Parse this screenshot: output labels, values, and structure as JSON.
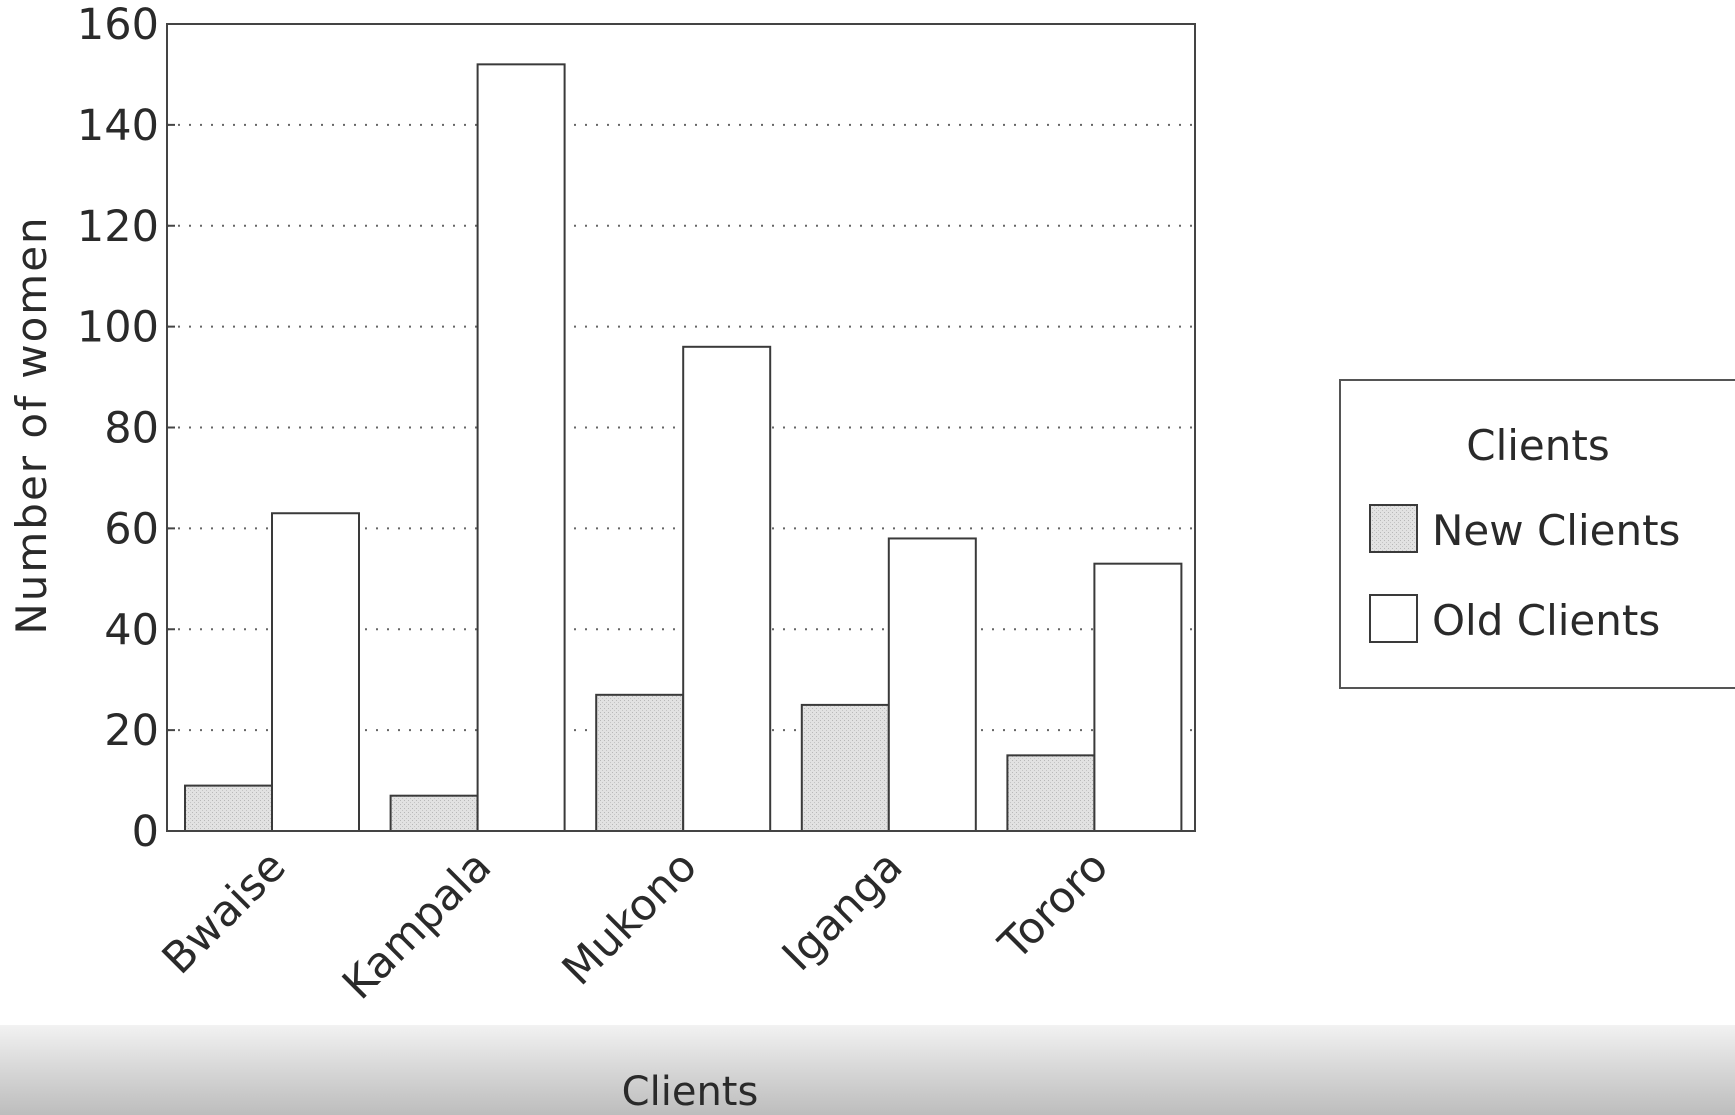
{
  "chart_data": {
    "type": "bar",
    "title": "",
    "xlabel": "Clients",
    "ylabel": "Number of women",
    "categories": [
      "Bwaise",
      "Kampala",
      "Mukono",
      "Iganga",
      "Tororo"
    ],
    "series": [
      {
        "name": "New Clients",
        "values": [
          9,
          7,
          27,
          25,
          15
        ],
        "color": "#dcdcdc"
      },
      {
        "name": "Old Clients",
        "values": [
          63,
          152,
          96,
          58,
          53
        ],
        "color": "#ffffff"
      }
    ],
    "ylim": [
      0,
      160
    ],
    "yticks": [
      "0",
      "20",
      "40",
      "60",
      "80",
      "100",
      "120",
      "140",
      "160"
    ],
    "grid": "dotted horizontal",
    "legend": {
      "title": "Clients",
      "position": "right"
    }
  }
}
